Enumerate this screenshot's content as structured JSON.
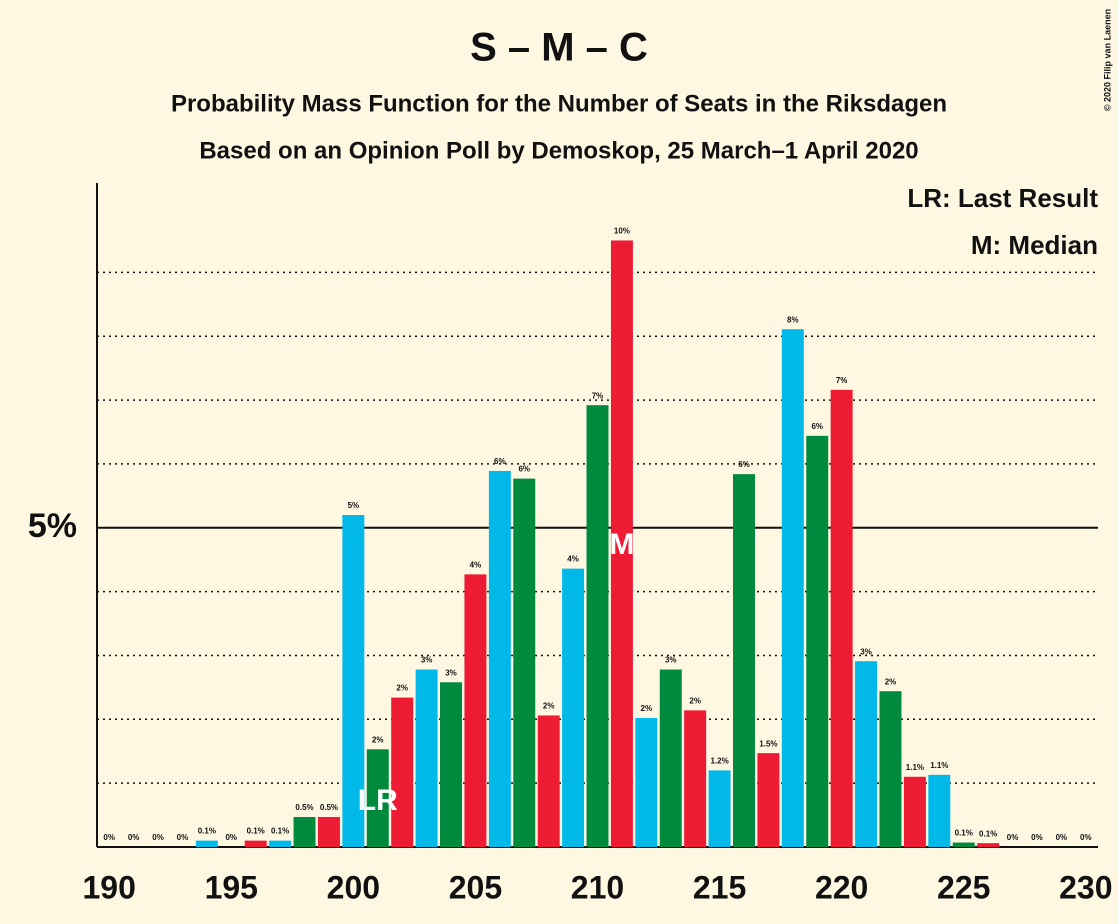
{
  "chart_data": {
    "type": "bar",
    "title": "S – M – C",
    "subtitle": "Probability Mass Function for the Number of Seats in the Riksdagen",
    "subtitle2": "Based on an Opinion Poll by Demoskop, 25 March–1 April 2020",
    "copyright": "© 2020 Filip van Laenen",
    "legend": [
      "LR: Last Result",
      "M: Median"
    ],
    "x": [
      190,
      191,
      192,
      193,
      194,
      195,
      196,
      197,
      198,
      199,
      200,
      201,
      202,
      203,
      204,
      205,
      206,
      207,
      208,
      209,
      210,
      211,
      212,
      213,
      214,
      215,
      216,
      217,
      218,
      219,
      220,
      221,
      222,
      223,
      224,
      225,
      226,
      227,
      228,
      229,
      230
    ],
    "values": [
      0,
      0,
      0,
      0,
      0.1,
      0,
      0.1,
      0.1,
      0.47,
      0.47,
      5.2,
      1.53,
      2.34,
      2.78,
      2.58,
      4.27,
      5.89,
      5.77,
      2.06,
      4.36,
      6.92,
      9.5,
      2.02,
      2.78,
      2.14,
      1.2,
      5.84,
      1.47,
      8.11,
      6.44,
      7.16,
      2.91,
      2.44,
      1.1,
      1.13,
      0.07,
      0.06,
      0,
      0,
      0,
      0
    ],
    "value_labels": [
      "0%",
      "0%",
      "0%",
      "0%",
      "0.1%",
      "0%",
      "0.1%",
      "0.1%",
      "0.5%",
      "0.5%",
      "5%",
      "2%",
      "2%",
      "3%",
      "3%",
      "4%",
      "6%",
      "6%",
      "2%",
      "4%",
      "7%",
      "10%",
      "2%",
      "3%",
      "2%",
      "1.2%",
      "6%",
      "1.5%",
      "8%",
      "6%",
      "7%",
      "3%",
      "2%",
      "1.1%",
      "1.1%",
      "0.1%",
      "0.1%",
      "0%",
      "0%",
      "0%",
      "0%"
    ],
    "colors": [
      "#ed1b34",
      "#00b9e8",
      "#008a3e",
      "#ed1b34",
      "#00b9e8",
      "#008a3e",
      "#ed1b34",
      "#00b9e8",
      "#008a3e",
      "#ed1b34",
      "#00b9e8",
      "#008a3e",
      "#ed1b34",
      "#00b9e8",
      "#008a3e",
      "#ed1b34",
      "#00b9e8",
      "#008a3e",
      "#ed1b34",
      "#00b9e8",
      "#008a3e",
      "#ed1b34",
      "#00b9e8",
      "#008a3e",
      "#ed1b34",
      "#00b9e8",
      "#008a3e",
      "#ed1b34",
      "#00b9e8",
      "#008a3e",
      "#ed1b34",
      "#00b9e8",
      "#008a3e",
      "#ed1b34",
      "#00b9e8",
      "#008a3e",
      "#ed1b34",
      "#00b9e8",
      "#008a3e",
      "#ed1b34",
      "#00b9e8"
    ],
    "annotations": [
      {
        "x": 201,
        "text": "LR"
      },
      {
        "x": 211,
        "text": "M"
      }
    ],
    "xlim": [
      189.5,
      230.5
    ],
    "xticks": [
      190,
      195,
      200,
      205,
      210,
      215,
      220,
      225,
      230
    ],
    "ylim": [
      0,
      10.4
    ],
    "yticks": [
      {
        "value": 5,
        "label": "5%"
      }
    ],
    "minor_yticks": [
      1,
      2,
      3,
      4,
      6,
      7,
      8,
      9
    ]
  }
}
